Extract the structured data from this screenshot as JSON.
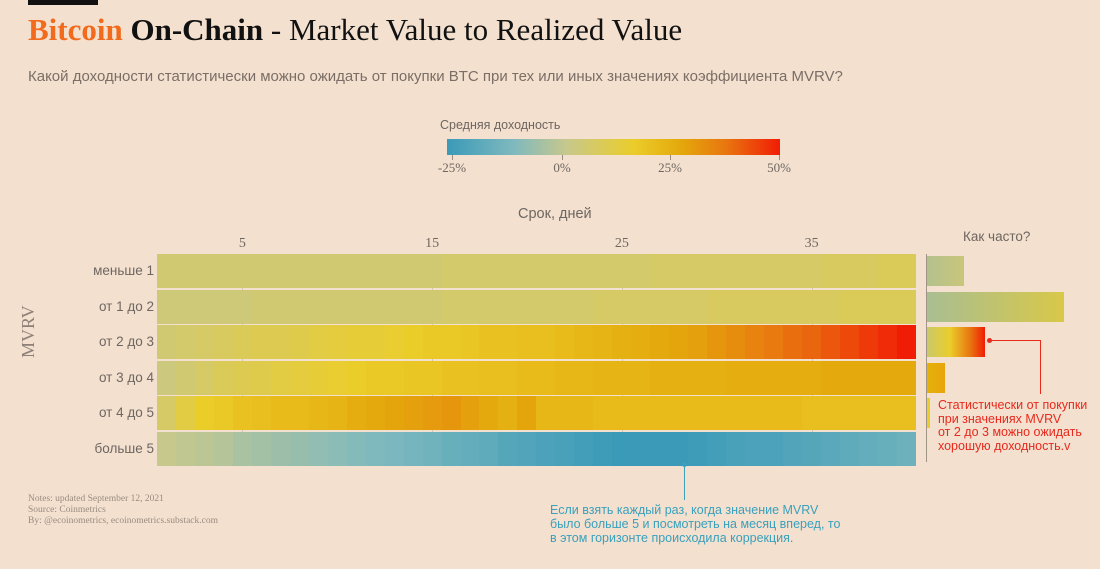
{
  "header": {
    "title_part1": "Bitcoin",
    "title_part2": "On-Chain",
    "title_part3": "- Market Value to Realized Value",
    "subtitle": "Какой доходности статистически можно ожидать от покупки BTC при тех или иных значениях коэффициента MVRV?"
  },
  "legend": {
    "title": "Средняя доходность",
    "ticks": [
      "-25%",
      "0%",
      "25%",
      "50%"
    ]
  },
  "frequency_panel": {
    "title": "Как часто?"
  },
  "annotations": {
    "red": [
      "Статистически от покупки",
      "при значениях MVRV",
      "от 2 до 3 можно ожидать",
      "хорошую доходность.v"
    ],
    "blue": [
      "Если взять каждый раз, когда значение MVRV",
      "было больше 5 и посмотреть на месяц вперед, то",
      "в этом горизонте происходила коррекция."
    ]
  },
  "notes": [
    "Notes: updated September 12, 2021",
    "Source: Coinmetrics",
    "By: @ecoinometrics, ecoinometrics.substack.com"
  ],
  "colors": {
    "title_accent": "#f26b1d",
    "annotation_red": "#e8291c",
    "annotation_blue": "#3aa0bc",
    "background": "#f3e0cf"
  },
  "chart_data": {
    "type": "heatmap",
    "title": "Средняя доходность",
    "xlabel": "Срок, дней",
    "ylabel": "MVRV",
    "x_ticks": [
      "5",
      "15",
      "25",
      "35"
    ],
    "x": [
      1,
      2,
      3,
      4,
      5,
      6,
      7,
      8,
      9,
      10,
      11,
      12,
      13,
      14,
      15,
      16,
      17,
      18,
      19,
      20,
      21,
      22,
      23,
      24,
      25,
      26,
      27,
      28,
      29,
      30,
      31,
      32,
      33,
      34,
      35,
      36,
      37,
      38,
      39,
      40
    ],
    "color_scale": {
      "min": -25,
      "max": 50,
      "unit": "%"
    },
    "rows": [
      {
        "label": "меньше 1",
        "values": [
          6,
          6,
          6,
          6,
          6,
          6,
          6,
          6,
          6,
          6,
          6,
          6,
          6,
          6,
          6,
          7,
          7,
          7,
          7,
          7,
          7,
          7,
          7,
          7,
          7,
          7,
          8,
          8,
          8,
          8,
          8,
          8,
          8,
          8,
          8,
          9,
          9,
          9,
          10,
          10
        ]
      },
      {
        "label": "от 1 до 2",
        "values": [
          5,
          5,
          5,
          5,
          5,
          6,
          6,
          6,
          6,
          6,
          6,
          6,
          6,
          6,
          6,
          7,
          7,
          7,
          7,
          7,
          7,
          7,
          7,
          8,
          8,
          8,
          8,
          8,
          8,
          9,
          9,
          9,
          9,
          9,
          9,
          9,
          10,
          10,
          10,
          10
        ]
      },
      {
        "label": "от 2 до 3",
        "values": [
          6,
          7,
          8,
          9,
          10,
          11,
          11,
          12,
          13,
          14,
          15,
          15,
          16,
          17,
          18,
          18,
          19,
          20,
          20,
          21,
          21,
          22,
          23,
          24,
          25,
          26,
          27,
          28,
          29,
          31,
          33,
          35,
          37,
          39,
          40,
          42,
          44,
          46,
          48,
          50
        ]
      },
      {
        "label": "от 3 до 4",
        "values": [
          4,
          6,
          8,
          10,
          11,
          12,
          13,
          14,
          15,
          16,
          17,
          18,
          18,
          19,
          19,
          20,
          20,
          21,
          21,
          22,
          22,
          23,
          23,
          24,
          24,
          24,
          25,
          25,
          25,
          25,
          26,
          26,
          26,
          26,
          26,
          27,
          27,
          27,
          27,
          27
        ]
      },
      {
        "label": "от 4 до 5",
        "values": [
          8,
          13,
          17,
          18,
          20,
          21,
          22,
          22,
          23,
          24,
          26,
          27,
          28,
          29,
          30,
          31,
          29,
          27,
          25,
          28,
          23,
          23,
          23,
          22,
          22,
          22,
          22,
          22,
          22,
          22,
          22,
          22,
          22,
          22,
          21,
          21,
          21,
          21,
          21,
          21
        ]
      },
      {
        "label": "больше 5",
        "values": [
          2,
          1,
          0,
          -1,
          -3,
          -4,
          -5,
          -6,
          -7,
          -8,
          -9,
          -10,
          -11,
          -12,
          -13,
          -15,
          -16,
          -17,
          -19,
          -20,
          -21,
          -22,
          -23,
          -24,
          -25,
          -25,
          -25,
          -25,
          -24,
          -23,
          -22,
          -21,
          -21,
          -20,
          -19,
          -18,
          -17,
          -16,
          -15,
          -14
        ]
      }
    ],
    "frequency": [
      {
        "label": "меньше 1",
        "value": 0.14
      },
      {
        "label": "от 1 до 2",
        "value": 0.52
      },
      {
        "label": "от 2 до 3",
        "value": 0.22
      },
      {
        "label": "от 3 до 4",
        "value": 0.07
      },
      {
        "label": "от 4 до 5",
        "value": 0.01
      },
      {
        "label": "больше 5",
        "value": 0.0
      }
    ]
  }
}
